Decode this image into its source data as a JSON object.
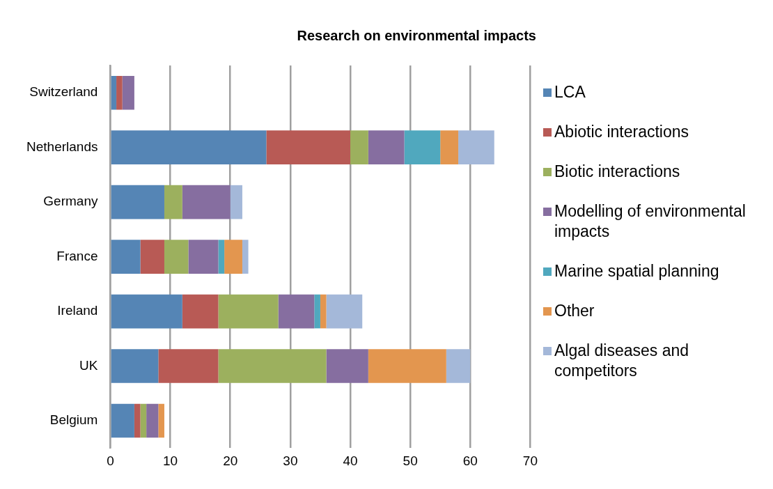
{
  "chart_data": {
    "type": "bar",
    "orientation": "horizontal",
    "stacked": true,
    "title": "Research on environmental impacts",
    "categories": [
      "Switzerland",
      "Netherlands",
      "Germany",
      "France",
      "Ireland",
      "UK",
      "Belgium"
    ],
    "series": [
      {
        "name": "LCA",
        "color": "#5585b5",
        "values": [
          1,
          26,
          9,
          5,
          12,
          8,
          4
        ]
      },
      {
        "name": "Abiotic interactions",
        "color": "#b85a55",
        "values": [
          1,
          14,
          0,
          4,
          6,
          10,
          1
        ]
      },
      {
        "name": "Biotic interactions",
        "color": "#9cb05e",
        "values": [
          0,
          3,
          3,
          4,
          10,
          18,
          1
        ]
      },
      {
        "name": "Modelling of environmental impacts",
        "color": "#866ea0",
        "values": [
          2,
          6,
          8,
          5,
          6,
          7,
          2
        ]
      },
      {
        "name": "Marine spatial planning",
        "color": "#50a8be",
        "values": [
          0,
          6,
          0,
          1,
          1,
          0,
          0
        ]
      },
      {
        "name": "Other",
        "color": "#e3964f",
        "values": [
          0,
          3,
          0,
          3,
          1,
          13,
          1
        ]
      },
      {
        "name": "Algal diseases and competitors",
        "color": "#a4b8d9",
        "values": [
          0,
          6,
          2,
          1,
          6,
          4,
          0
        ]
      }
    ],
    "xlim": [
      0,
      70
    ],
    "xticks": [
      0,
      10,
      20,
      30,
      40,
      50,
      60,
      70
    ],
    "grid": "x",
    "legend": "right"
  }
}
